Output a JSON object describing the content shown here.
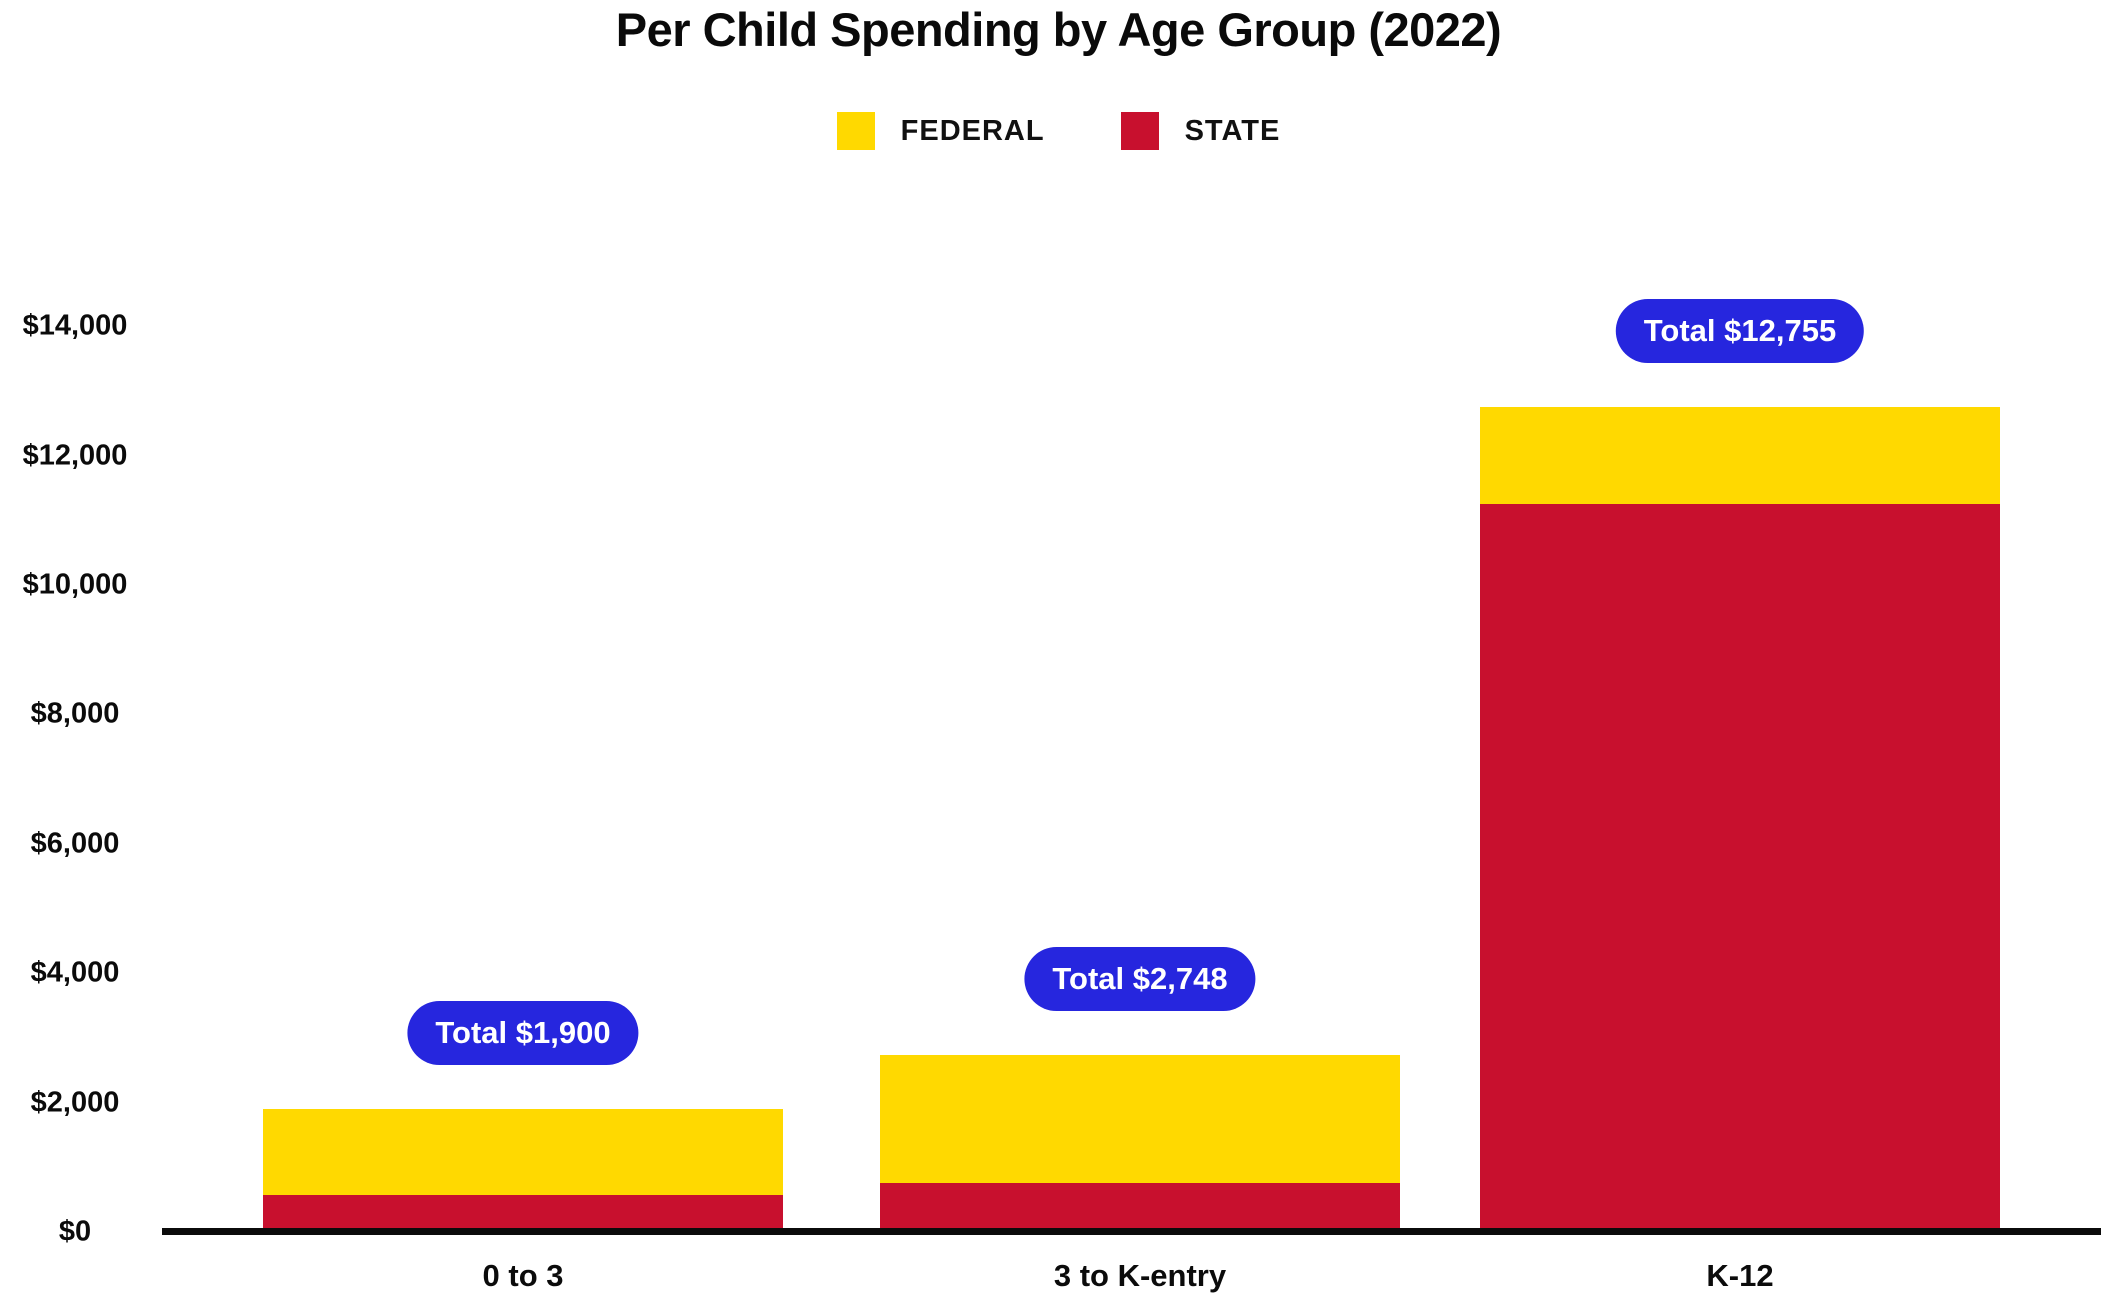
{
  "title": "Per Child Spending by Age Group (2022)",
  "legend": {
    "items": [
      {
        "label": "FEDERAL",
        "color": "#FFD900"
      },
      {
        "label": "STATE",
        "color": "#C8102E"
      }
    ]
  },
  "y_axis": {
    "tick_labels": [
      "$0",
      "$2,000",
      "$4,000",
      "$6,000",
      "$8,000",
      "$10,000",
      "$12,000",
      "$14,000"
    ],
    "min": 0,
    "max": 14000,
    "step": 2000
  },
  "colors": {
    "federal": "#FFD900",
    "state": "#C8102E",
    "badge_bg": "#2626DE",
    "badge_text": "#FFFFFF",
    "axis": "#0B0B0B"
  },
  "chart_data": {
    "type": "bar",
    "stacked": true,
    "title": "Per Child Spending by Age Group (2022)",
    "categories": [
      "0 to 3",
      "3 to K-entry",
      "K-12"
    ],
    "series": [
      {
        "name": "FEDERAL",
        "color": "#FFD900",
        "values": [
          1325,
          1984,
          1500
        ]
      },
      {
        "name": "STATE",
        "color": "#C8102E",
        "values": [
          575,
          764,
          11255
        ]
      }
    ],
    "totals": [
      1900,
      2748,
      12755
    ],
    "total_labels": [
      "Total $1,900",
      "Total $2,748",
      "Total $12,755"
    ],
    "xlabel": "",
    "ylabel": "",
    "ylim": [
      0,
      14000
    ],
    "ytick_prefix": "$",
    "grid": false,
    "legend_position": "top"
  }
}
